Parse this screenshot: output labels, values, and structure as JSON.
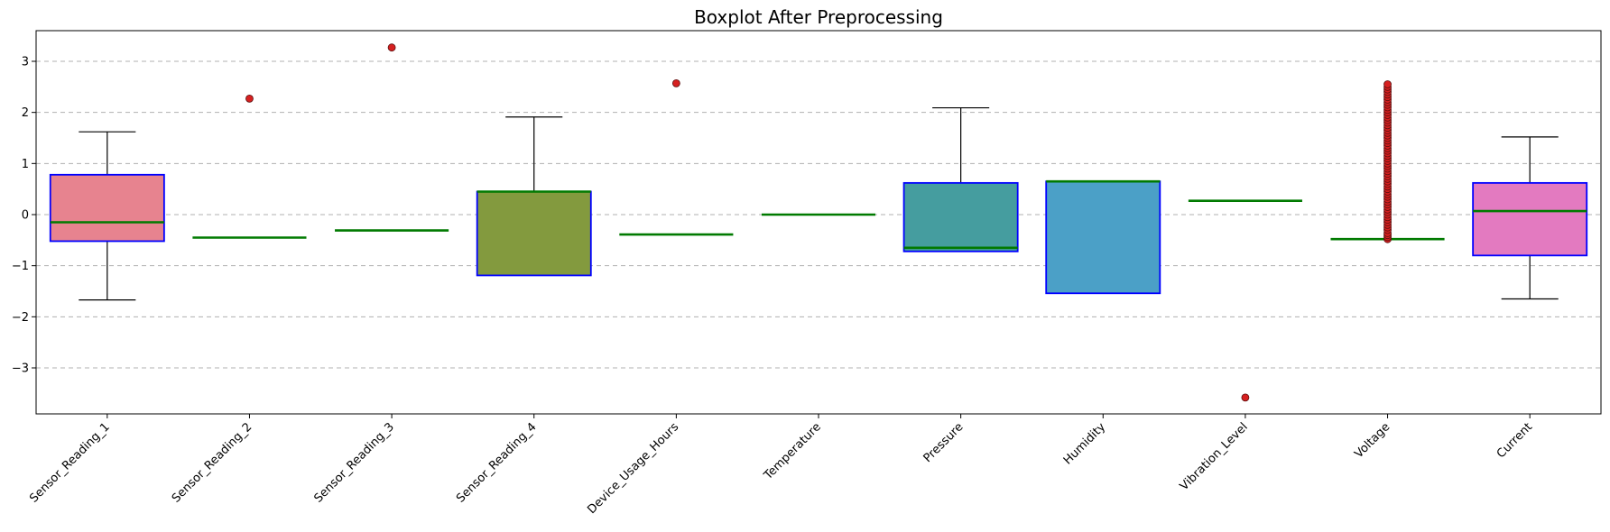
{
  "chart_data": {
    "type": "box",
    "title": "Boxplot After Preprocessing",
    "xlabel": "",
    "ylabel": "",
    "ylim": [
      -3.9,
      3.6
    ],
    "yticks": [
      3,
      2,
      1,
      0,
      -1,
      -2,
      -3
    ],
    "ytick_labels": [
      "3",
      "2",
      "1",
      "0",
      "−1",
      "−2",
      "−3"
    ],
    "grid": "horizontal, dashed",
    "legend": "none",
    "box_edge_color": "#0000ff",
    "median_color": "#007a00",
    "outlier_color": "#d62020",
    "categories": [
      {
        "name": "Sensor_Reading_1",
        "color": "#e7838f",
        "q1": -0.52,
        "median": -0.15,
        "q3": 0.78,
        "whisker_low": -1.67,
        "whisker_high": 1.62,
        "outliers": []
      },
      {
        "name": "Sensor_Reading_2",
        "color": "#d6973a",
        "q1": -0.45,
        "median": -0.45,
        "q3": -0.45,
        "whisker_low": -0.45,
        "whisker_high": -0.45,
        "outliers": [
          2.27
        ]
      },
      {
        "name": "Sensor_Reading_3",
        "color": "#b5a03a",
        "q1": -0.31,
        "median": -0.31,
        "q3": -0.31,
        "whisker_low": -0.31,
        "whisker_high": -0.31,
        "outliers": [
          3.27
        ]
      },
      {
        "name": "Sensor_Reading_4",
        "color": "#839a3e",
        "q1": -1.19,
        "median": 0.45,
        "q3": 0.45,
        "whisker_low": -1.19,
        "whisker_high": 1.91,
        "outliers": []
      },
      {
        "name": "Device_Usage_Hours",
        "color": "#4a9c5a",
        "q1": -0.39,
        "median": -0.39,
        "q3": -0.39,
        "whisker_low": -0.39,
        "whisker_high": -0.39,
        "outliers": [
          2.57
        ]
      },
      {
        "name": "Temperature",
        "color": "#47a08a",
        "q1": 0.0,
        "median": 0.0,
        "q3": 0.0,
        "whisker_low": 0.0,
        "whisker_high": 0.0,
        "outliers": []
      },
      {
        "name": "Pressure",
        "color": "#459d9f",
        "q1": -0.72,
        "median": -0.65,
        "q3": 0.62,
        "whisker_low": -0.72,
        "whisker_high": 2.09,
        "outliers": []
      },
      {
        "name": "Humidity",
        "color": "#4ba0c7",
        "q1": -1.54,
        "median": 0.65,
        "q3": 0.65,
        "whisker_low": -1.54,
        "whisker_high": 0.65,
        "outliers": []
      },
      {
        "name": "Vibration_Level",
        "color": "#8e9fd8",
        "q1": 0.27,
        "median": 0.27,
        "q3": 0.27,
        "whisker_low": 0.27,
        "whisker_high": 0.27,
        "outliers": [
          -3.58
        ]
      },
      {
        "name": "Voltage",
        "color": "#c18ad8",
        "q1": -0.48,
        "median": -0.48,
        "q3": -0.48,
        "whisker_low": -0.48,
        "whisker_high": -0.48,
        "outliers": [
          -0.48,
          -0.44,
          -0.4,
          -0.36,
          -0.3,
          -0.25,
          -0.2,
          -0.15,
          -0.1,
          -0.05,
          0.0,
          0.05,
          0.1,
          0.15,
          0.2,
          0.25,
          0.3,
          0.35,
          0.4,
          0.45,
          0.5,
          0.55,
          0.6,
          0.65,
          0.7,
          0.75,
          0.8,
          0.85,
          0.9,
          0.95,
          1.0,
          1.05,
          1.1,
          1.15,
          1.2,
          1.25,
          1.3,
          1.35,
          1.4,
          1.45,
          1.5,
          1.55,
          1.6,
          1.65,
          1.7,
          1.75,
          1.8,
          1.85,
          1.9,
          1.95,
          2.0,
          2.05,
          2.1,
          2.15,
          2.2,
          2.25,
          2.3,
          2.35,
          2.4,
          2.45,
          2.5,
          2.55
        ]
      },
      {
        "name": "Current",
        "color": "#e37ac0",
        "q1": -0.8,
        "median": 0.07,
        "q3": 0.62,
        "whisker_low": -1.65,
        "whisker_high": 1.52,
        "outliers": []
      }
    ]
  }
}
